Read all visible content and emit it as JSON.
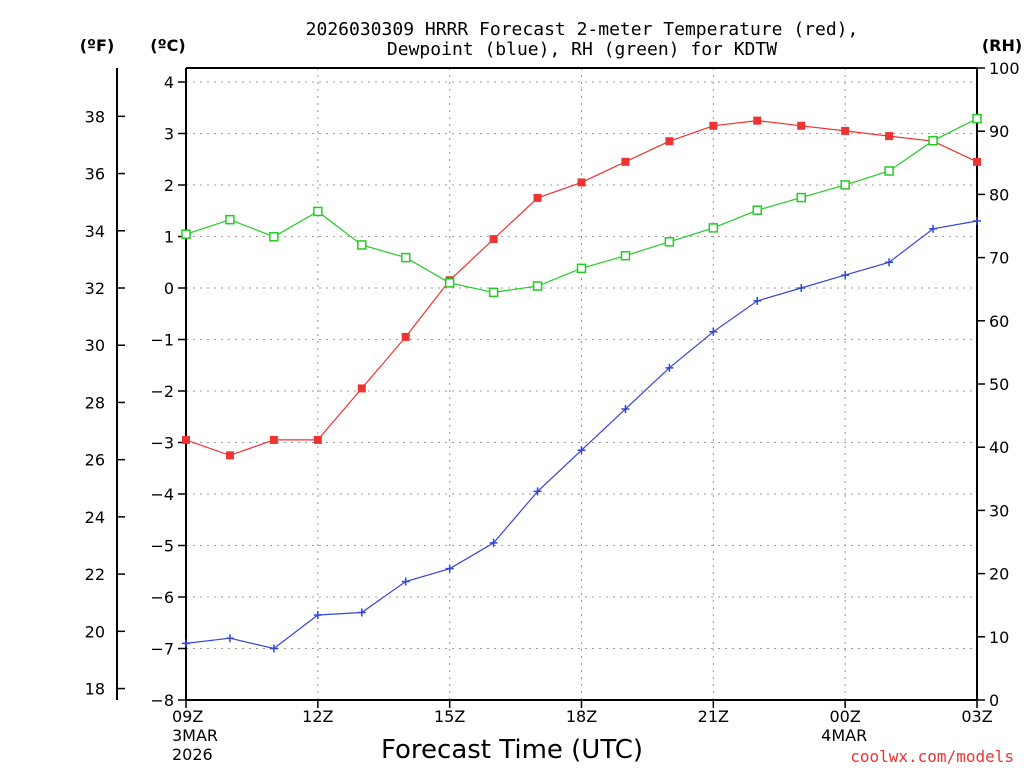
{
  "chart_data": {
    "type": "line",
    "title": "2026030309 HRRR Forecast 2-meter Temperature (red),",
    "subtitle": "Dewpoint (blue), RH (green) for KDTW",
    "xlabel": "Forecast Time (UTC)",
    "unit_left_outer": "(ºF)",
    "unit_left_inner": "(ºC)",
    "unit_right": "(RH)",
    "credit": "coolwx.com/models",
    "x_hours": [
      0,
      1,
      2,
      3,
      4,
      5,
      6,
      7,
      8,
      9,
      10,
      11,
      12,
      13,
      14,
      15,
      16,
      17,
      18
    ],
    "x_ticks": [
      {
        "hour": 0,
        "label": "09Z",
        "sub1": "3MAR",
        "sub2": "2026"
      },
      {
        "hour": 3,
        "label": "12Z",
        "sub1": "",
        "sub2": ""
      },
      {
        "hour": 6,
        "label": "15Z",
        "sub1": "",
        "sub2": ""
      },
      {
        "hour": 9,
        "label": "18Z",
        "sub1": "",
        "sub2": ""
      },
      {
        "hour": 12,
        "label": "21Z",
        "sub1": "",
        "sub2": ""
      },
      {
        "hour": 15,
        "label": "00Z",
        "sub1": "4MAR",
        "sub2": ""
      },
      {
        "hour": 18,
        "label": "03Z",
        "sub1": "",
        "sub2": ""
      }
    ],
    "celsius_ylim": [
      -8,
      4
    ],
    "celsius_ticks": [
      "4",
      "3",
      "2",
      "1",
      "0",
      "−1",
      "−2",
      "−3",
      "−4",
      "−5",
      "−6",
      "−7",
      "−8"
    ],
    "celsius_tick_values": [
      4,
      3,
      2,
      1,
      0,
      -1,
      -2,
      -3,
      -4,
      -5,
      -6,
      -7,
      -8
    ],
    "fahrenheit_ticks": [
      "38",
      "36",
      "34",
      "32",
      "30",
      "28",
      "26",
      "24",
      "22",
      "20",
      "18"
    ],
    "fahrenheit_tick_values": [
      38,
      36,
      34,
      32,
      30,
      28,
      26,
      24,
      22,
      20,
      18
    ],
    "rh_ylim": [
      0,
      100
    ],
    "rh_ticks": [
      "100",
      "90",
      "80",
      "70",
      "60",
      "50",
      "40",
      "30",
      "20",
      "10",
      "0"
    ],
    "rh_tick_values": [
      100,
      90,
      80,
      70,
      60,
      50,
      40,
      30,
      20,
      10,
      0
    ],
    "series": [
      {
        "name": "Temperature",
        "color": "#ee3333",
        "axis": "celsius",
        "marker": "filled-square",
        "values": [
          -2.95,
          -3.25,
          -2.95,
          -2.95,
          -1.95,
          -0.95,
          0.15,
          0.95,
          1.75,
          2.05,
          2.45,
          2.85,
          3.15,
          3.25,
          3.15,
          3.05,
          2.95,
          2.85,
          2.45
        ]
      },
      {
        "name": "Dewpoint",
        "color": "#3344dd",
        "axis": "celsius",
        "marker": "plus",
        "values": [
          -6.9,
          -6.8,
          -7.0,
          -6.35,
          -6.3,
          -5.7,
          -5.45,
          -4.95,
          -3.95,
          -3.15,
          -2.35,
          -1.55,
          -0.85,
          -0.25,
          0.0,
          0.25,
          0.5,
          1.15,
          1.3
        ]
      },
      {
        "name": "RH",
        "color": "#22cc22",
        "axis": "rh",
        "marker": "open-square",
        "values": [
          73.7,
          76.0,
          73.3,
          77.3,
          72.0,
          70.0,
          66.0,
          64.5,
          65.5,
          68.3,
          70.3,
          72.5,
          74.7,
          77.5,
          79.5,
          81.5,
          83.7,
          88.5,
          92.0
        ]
      }
    ]
  }
}
